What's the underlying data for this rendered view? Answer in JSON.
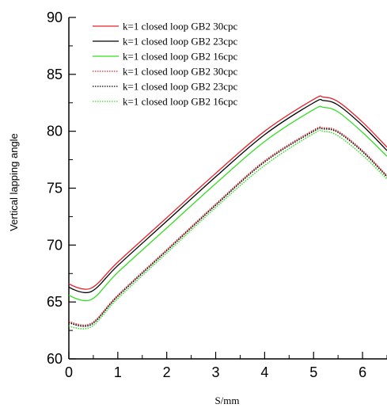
{
  "chart_data": {
    "type": "line",
    "title": "",
    "xlabel": "S/mm",
    "ylabel": "Vertical lapping angle",
    "xlim": [
      0,
      6.5
    ],
    "ylim": [
      60,
      90
    ],
    "x_ticks": [
      "0",
      "1",
      "2",
      "3",
      "4",
      "5",
      "6"
    ],
    "y_ticks": [
      "60",
      "65",
      "70",
      "75",
      "80",
      "85",
      "90"
    ],
    "grid": false,
    "legend_position": "top-left",
    "series": [
      {
        "name": "k=1 closed loop GB2 30cpc",
        "color": "#e8202a",
        "style": "solid",
        "points": [
          [
            0,
            66.6
          ],
          [
            0.45,
            66.2
          ],
          [
            1.0,
            68.5
          ],
          [
            2.0,
            72.4
          ],
          [
            3.0,
            76.3
          ],
          [
            4.0,
            80.0
          ],
          [
            5.0,
            82.8
          ],
          [
            5.2,
            83.0
          ],
          [
            5.5,
            82.6
          ],
          [
            6.0,
            80.8
          ],
          [
            6.5,
            78.6
          ]
        ]
      },
      {
        "name": "k=1 closed loop GB2 23cpc",
        "color": "#000000",
        "style": "solid",
        "points": [
          [
            0,
            66.3
          ],
          [
            0.45,
            65.9
          ],
          [
            1.0,
            68.2
          ],
          [
            2.0,
            72.1
          ],
          [
            3.0,
            76.0
          ],
          [
            4.0,
            79.7
          ],
          [
            5.0,
            82.5
          ],
          [
            5.2,
            82.7
          ],
          [
            5.5,
            82.3
          ],
          [
            6.0,
            80.5
          ],
          [
            6.5,
            78.3
          ]
        ]
      },
      {
        "name": "k=1 closed loop GB2 16cpc",
        "color": "#33dd22",
        "style": "solid",
        "points": [
          [
            0,
            65.6
          ],
          [
            0.45,
            65.2
          ],
          [
            1.0,
            67.6
          ],
          [
            2.0,
            71.5
          ],
          [
            3.0,
            75.4
          ],
          [
            4.0,
            79.1
          ],
          [
            5.0,
            81.9
          ],
          [
            5.2,
            82.1
          ],
          [
            5.5,
            81.7
          ],
          [
            6.0,
            79.9
          ],
          [
            6.5,
            77.8
          ]
        ]
      },
      {
        "name": "k=1 closed loop GB2 30cpc",
        "color": "#e8202a",
        "style": "dotted",
        "points": [
          [
            0,
            63.3
          ],
          [
            0.45,
            63.1
          ],
          [
            1.0,
            65.6
          ],
          [
            2.0,
            69.6
          ],
          [
            3.0,
            73.6
          ],
          [
            4.0,
            77.4
          ],
          [
            5.0,
            80.1
          ],
          [
            5.2,
            80.3
          ],
          [
            5.5,
            80.0
          ],
          [
            6.0,
            78.3
          ],
          [
            6.5,
            76.1
          ]
        ]
      },
      {
        "name": "k=1 closed loop GB2 23cpc",
        "color": "#000000",
        "style": "dotted",
        "points": [
          [
            0,
            63.2
          ],
          [
            0.45,
            63.0
          ],
          [
            1.0,
            65.5
          ],
          [
            2.0,
            69.5
          ],
          [
            3.0,
            73.5
          ],
          [
            4.0,
            77.3
          ],
          [
            5.0,
            80.0
          ],
          [
            5.2,
            80.2
          ],
          [
            5.5,
            79.9
          ],
          [
            6.0,
            78.2
          ],
          [
            6.5,
            76.0
          ]
        ]
      },
      {
        "name": "k=1 closed loop GB2 16cpc",
        "color": "#33dd22",
        "style": "dotted",
        "points": [
          [
            0,
            62.9
          ],
          [
            0.45,
            62.8
          ],
          [
            1.0,
            65.3
          ],
          [
            2.0,
            69.3
          ],
          [
            3.0,
            73.3
          ],
          [
            4.0,
            77.0
          ],
          [
            5.0,
            79.8
          ],
          [
            5.2,
            80.0
          ],
          [
            5.5,
            79.6
          ],
          [
            6.0,
            77.9
          ],
          [
            6.5,
            75.8
          ]
        ]
      }
    ]
  }
}
